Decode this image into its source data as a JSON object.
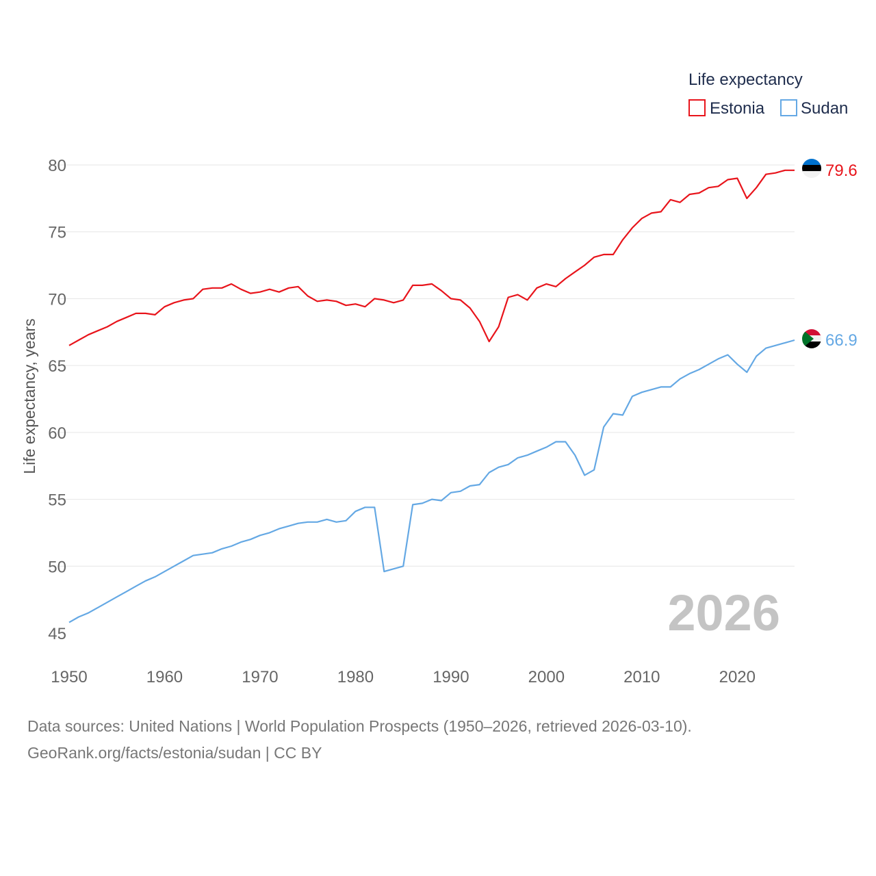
{
  "chart_data": {
    "type": "line",
    "title": "",
    "ylabel": "Life expectancy, years",
    "xlabel": "",
    "xlim": [
      1950,
      2026
    ],
    "ylim": [
      45,
      80
    ],
    "x_ticks": [
      "1950",
      "1960",
      "1970",
      "1980",
      "1990",
      "2000",
      "2010",
      "2020"
    ],
    "y_ticks": [
      "45",
      "50",
      "55",
      "60",
      "65",
      "70",
      "75",
      "80"
    ],
    "legend": {
      "title": "Life expectancy",
      "position": "top-right"
    },
    "year_watermark": "2026",
    "x": [
      1950,
      1951,
      1952,
      1953,
      1954,
      1955,
      1956,
      1957,
      1958,
      1959,
      1960,
      1961,
      1962,
      1963,
      1964,
      1965,
      1966,
      1967,
      1968,
      1969,
      1970,
      1971,
      1972,
      1973,
      1974,
      1975,
      1976,
      1977,
      1978,
      1979,
      1980,
      1981,
      1982,
      1983,
      1984,
      1985,
      1986,
      1987,
      1988,
      1989,
      1990,
      1991,
      1992,
      1993,
      1994,
      1995,
      1996,
      1997,
      1998,
      1999,
      2000,
      2001,
      2002,
      2003,
      2004,
      2005,
      2006,
      2007,
      2008,
      2009,
      2010,
      2011,
      2012,
      2013,
      2014,
      2015,
      2016,
      2017,
      2018,
      2019,
      2020,
      2021,
      2022,
      2023,
      2024,
      2025,
      2026
    ],
    "series": [
      {
        "name": "Estonia",
        "color": "#e8141b",
        "end_label": "79.6",
        "flag": "estonia-flag",
        "values": [
          66.5,
          66.9,
          67.3,
          67.6,
          67.9,
          68.3,
          68.6,
          68.9,
          68.9,
          68.8,
          69.4,
          69.7,
          69.9,
          70.0,
          70.7,
          70.8,
          70.8,
          71.1,
          70.7,
          70.4,
          70.5,
          70.7,
          70.5,
          70.8,
          70.9,
          70.2,
          69.8,
          69.9,
          69.8,
          69.5,
          69.6,
          69.4,
          70.0,
          69.9,
          69.7,
          69.9,
          71.0,
          71.0,
          71.1,
          70.6,
          70.0,
          69.9,
          69.3,
          68.3,
          66.8,
          67.9,
          70.1,
          70.3,
          69.9,
          70.8,
          71.1,
          70.9,
          71.5,
          72.0,
          72.5,
          73.1,
          73.3,
          73.3,
          74.4,
          75.3,
          76.0,
          76.4,
          76.5,
          77.4,
          77.2,
          77.8,
          77.9,
          78.3,
          78.4,
          78.9,
          79.0,
          77.5,
          78.3,
          79.3,
          79.4,
          79.6,
          79.6
        ]
      },
      {
        "name": "Sudan",
        "color": "#64a8e4",
        "end_label": "66.9",
        "flag": "sudan-flag",
        "values": [
          45.8,
          46.2,
          46.5,
          46.9,
          47.3,
          47.7,
          48.1,
          48.5,
          48.9,
          49.2,
          49.6,
          50.0,
          50.4,
          50.8,
          50.9,
          51.0,
          51.3,
          51.5,
          51.8,
          52.0,
          52.3,
          52.5,
          52.8,
          53.0,
          53.2,
          53.3,
          53.3,
          53.5,
          53.3,
          53.4,
          54.1,
          54.4,
          54.4,
          49.6,
          49.8,
          50.0,
          54.6,
          54.7,
          55.0,
          54.9,
          55.5,
          55.6,
          56.0,
          56.1,
          57.0,
          57.4,
          57.6,
          58.1,
          58.3,
          58.6,
          58.9,
          59.3,
          59.3,
          58.3,
          56.8,
          57.2,
          60.4,
          61.4,
          61.3,
          62.7,
          63.0,
          63.2,
          63.4,
          63.4,
          64.0,
          64.4,
          64.7,
          65.1,
          65.5,
          65.8,
          65.1,
          64.5,
          65.7,
          66.3,
          66.5,
          66.7,
          66.9
        ]
      }
    ]
  },
  "footer": {
    "source_line": "Data sources: United Nations | World Population Prospects (1950–2026, retrieved 2026-03-10).",
    "credit_line": "GeoRank.org/facts/estonia/sudan | CC BY"
  }
}
